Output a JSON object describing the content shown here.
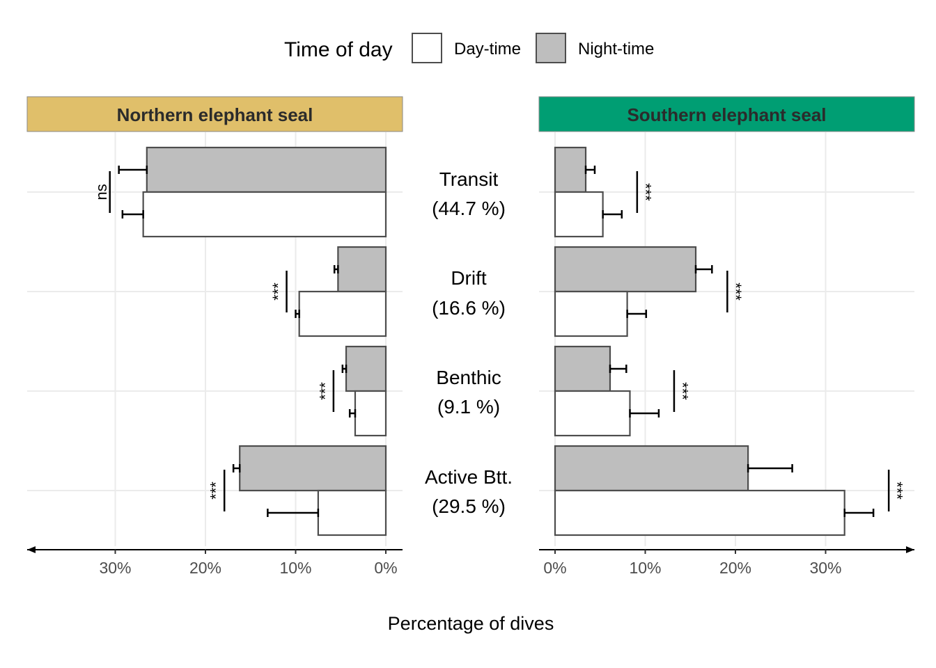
{
  "legend": {
    "title": "Time of day",
    "items": [
      {
        "label": "Day-time",
        "color": "#ffffff"
      },
      {
        "label": "Night-time",
        "color": "#bebebe"
      }
    ]
  },
  "x_axis_title": "Percentage of dives",
  "category_labels": [
    {
      "name": "Transit",
      "share": "(44.7 %)"
    },
    {
      "name": "Drift",
      "share": "(16.6 %)"
    },
    {
      "name": "Benthic",
      "share": "(9.1 %)"
    },
    {
      "name": "Active Btt.",
      "share": "(29.5 %)"
    }
  ],
  "colors": {
    "northern_strip": "#e0bf6a",
    "southern_strip": "#009e73",
    "day_fill": "#ffffff",
    "night_fill": "#bebebe",
    "bar_stroke": "#4d4d4d",
    "grid": "#ebebeb"
  },
  "chart_data": [
    {
      "type": "bar",
      "orientation": "horizontal",
      "direction": "reversed",
      "title": "Northern elephant seal",
      "categories": [
        "Transit",
        "Drift",
        "Benthic",
        "Active Btt."
      ],
      "xlim": [
        0,
        39
      ],
      "xticks": [
        0,
        10,
        20,
        30
      ],
      "xtick_labels": [
        "0%",
        "10%",
        "20%",
        "30%"
      ],
      "series": [
        {
          "name": "Night-time",
          "values": [
            26.5,
            5.3,
            4.4,
            16.2
          ],
          "err_upper": [
            29.6,
            5.7,
            4.8,
            16.9
          ]
        },
        {
          "name": "Day-time",
          "values": [
            26.9,
            9.6,
            3.4,
            7.5
          ],
          "err_upper": [
            29.2,
            10.0,
            4.0,
            13.1
          ]
        }
      ],
      "significance": [
        "ns",
        "***",
        "***",
        "***"
      ]
    },
    {
      "type": "bar",
      "orientation": "horizontal",
      "title": "Southern elephant seal",
      "categories": [
        "Transit",
        "Drift",
        "Benthic",
        "Active Btt."
      ],
      "xlim": [
        0,
        39
      ],
      "xticks": [
        0,
        10,
        20,
        30
      ],
      "xtick_labels": [
        "0%",
        "10%",
        "20%",
        "30%"
      ],
      "series": [
        {
          "name": "Night-time",
          "values": [
            3.4,
            15.6,
            6.1,
            21.4
          ],
          "err_upper": [
            4.4,
            17.4,
            7.9,
            26.3
          ]
        },
        {
          "name": "Day-time",
          "values": [
            5.3,
            8.0,
            8.3,
            32.1
          ],
          "err_upper": [
            7.4,
            10.1,
            11.5,
            35.3
          ]
        }
      ],
      "significance": [
        "***",
        "***",
        "***",
        "***"
      ]
    }
  ]
}
